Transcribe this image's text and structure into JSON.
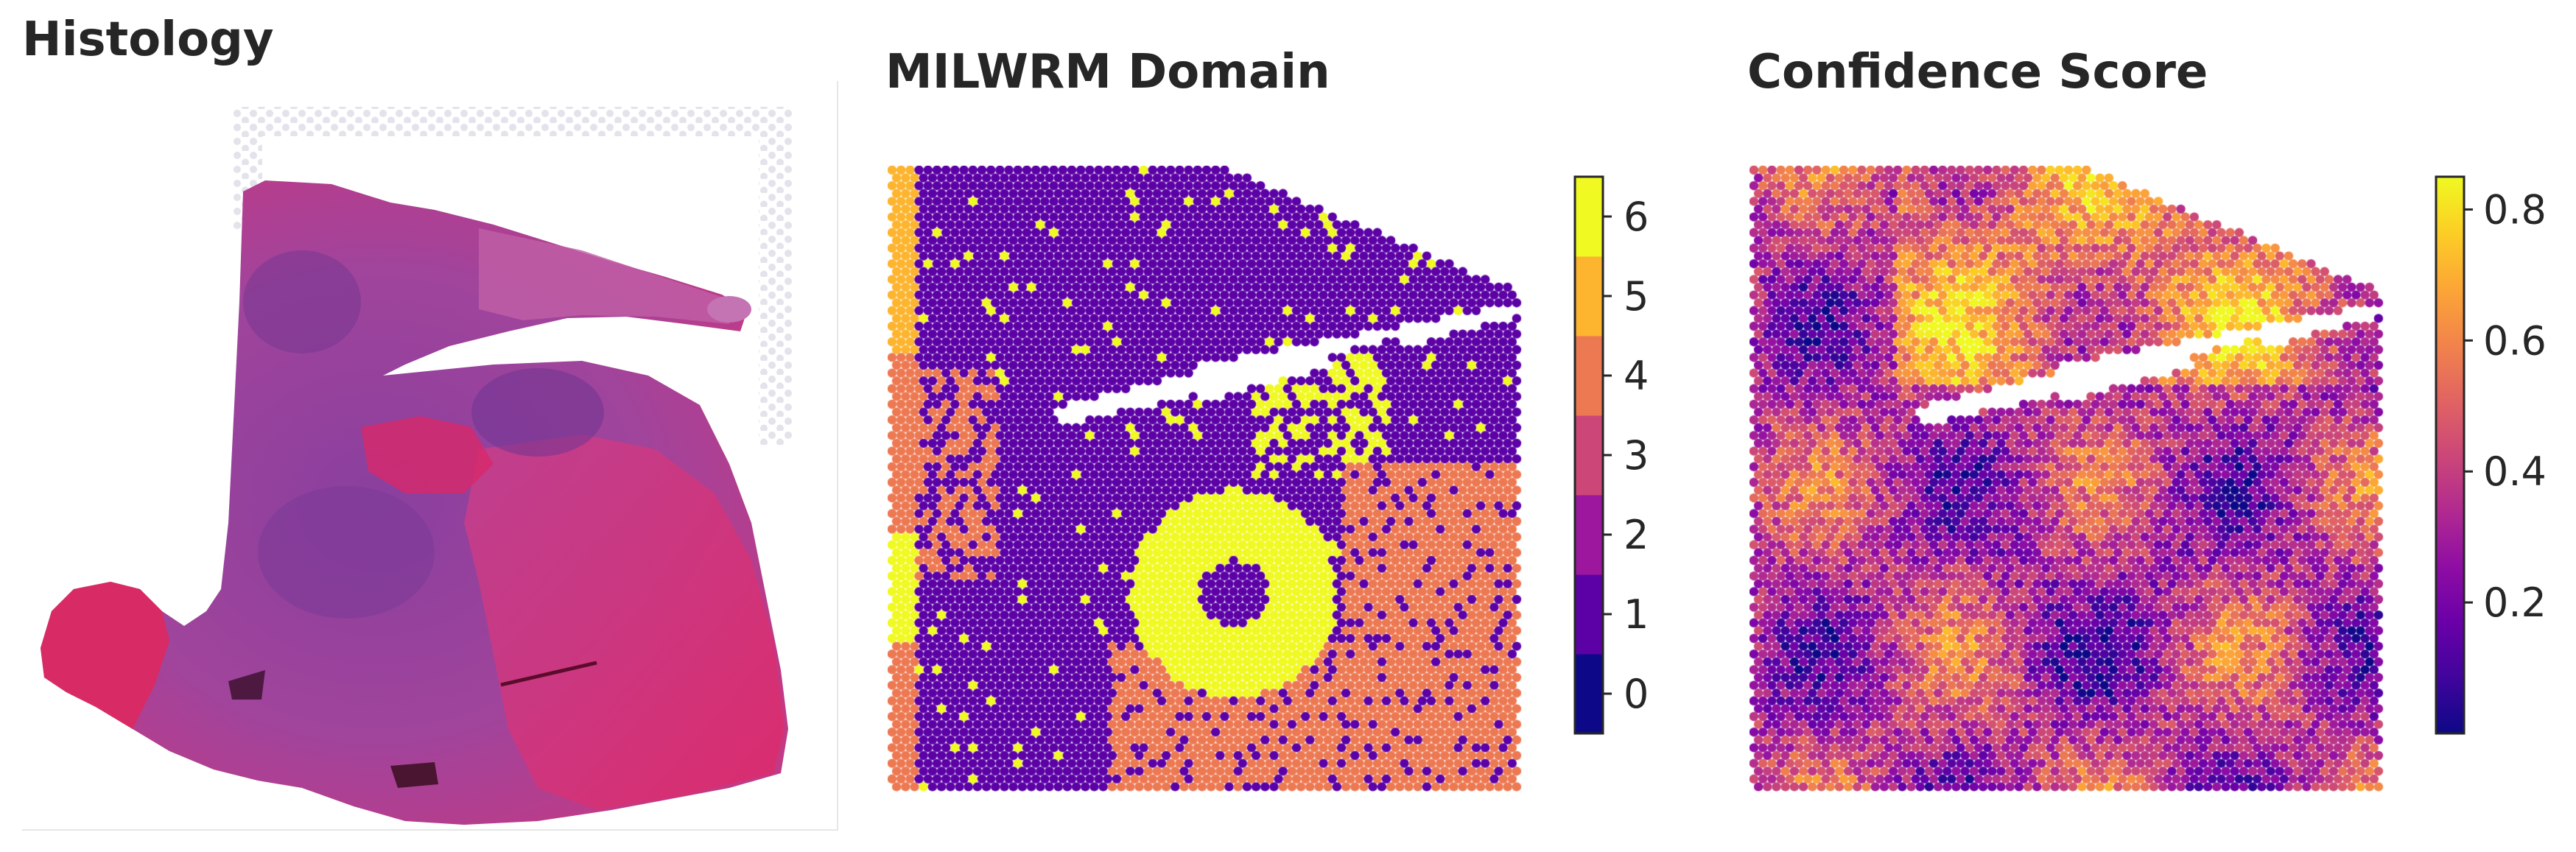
{
  "panels": {
    "histology": {
      "title": "Histology"
    },
    "domain": {
      "title": "MILWRM Domain"
    },
    "confidence": {
      "title": "Confidence Score"
    }
  },
  "chart_data": [
    {
      "type": "heatmap",
      "title": "MILWRM Domain",
      "colorbar": {
        "kind": "discrete",
        "ticks": [
          0,
          1,
          2,
          3,
          4,
          5,
          6
        ],
        "tick_labels": [
          "0",
          "1",
          "2",
          "3",
          "4",
          "5",
          "6"
        ],
        "colors": [
          "#0d0887",
          "#5c01a6",
          "#9c179e",
          "#cc4778",
          "#ed7953",
          "#fdb42f",
          "#f0f921"
        ],
        "range": [
          -0.5,
          6.5
        ]
      },
      "note_dominant_domains": [
        1,
        4,
        6
      ]
    },
    {
      "type": "heatmap",
      "title": "Confidence Score",
      "colorbar": {
        "kind": "continuous",
        "colormap": "plasma",
        "ticks": [
          0.2,
          0.4,
          0.6,
          0.8
        ],
        "tick_labels": [
          "0.2",
          "0.4",
          "0.6",
          "0.8"
        ],
        "range": [
          0.0,
          0.85
        ]
      }
    }
  ],
  "colors": {
    "plasma": [
      "#0d0887",
      "#41049d",
      "#6a00a8",
      "#8f0da4",
      "#b12a90",
      "#cc4778",
      "#e16462",
      "#f2844b",
      "#fca636",
      "#fcce25",
      "#f0f921"
    ],
    "tissue_dark": "#7a2a8a",
    "tissue_pink": "#d8296e",
    "tissue_light": "#b85aa5"
  }
}
